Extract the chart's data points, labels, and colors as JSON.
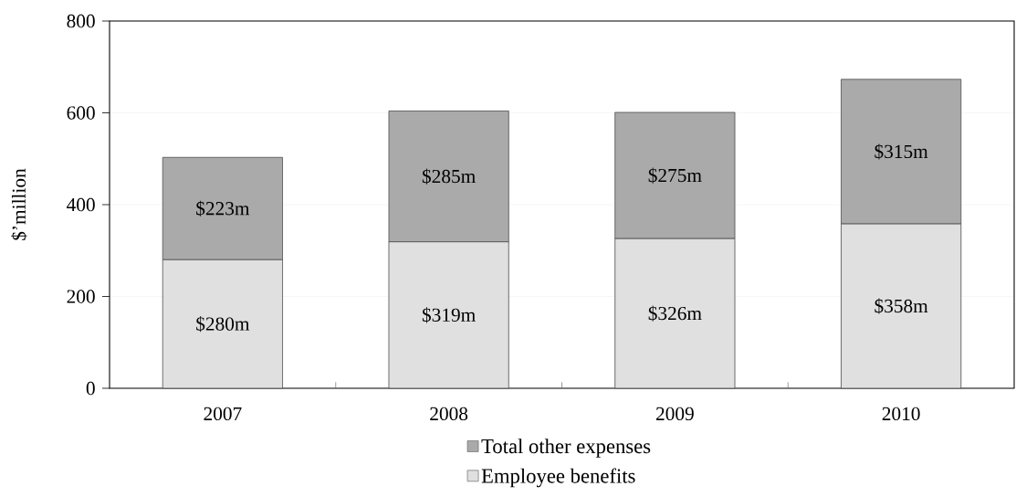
{
  "chart_data": {
    "type": "bar",
    "stacked": true,
    "ylabel": "$’million",
    "categories": [
      "2007",
      "2008",
      "2009",
      "2010"
    ],
    "series": [
      {
        "name": "Employee benefits",
        "color": "#e0e0e0",
        "values": [
          280,
          319,
          326,
          358
        ],
        "value_labels": [
          "$280m",
          "$319m",
          "$326m",
          "$358m"
        ]
      },
      {
        "name": "Total other expenses",
        "color": "#aaaaaa",
        "values": [
          223,
          285,
          275,
          315
        ],
        "value_labels": [
          "$223m",
          "$285m",
          "$275m",
          "$315m"
        ]
      }
    ],
    "ylim": [
      0,
      800
    ],
    "yticks": [
      0,
      200,
      400,
      600,
      800
    ],
    "grid": "y",
    "legend": "bottom"
  }
}
